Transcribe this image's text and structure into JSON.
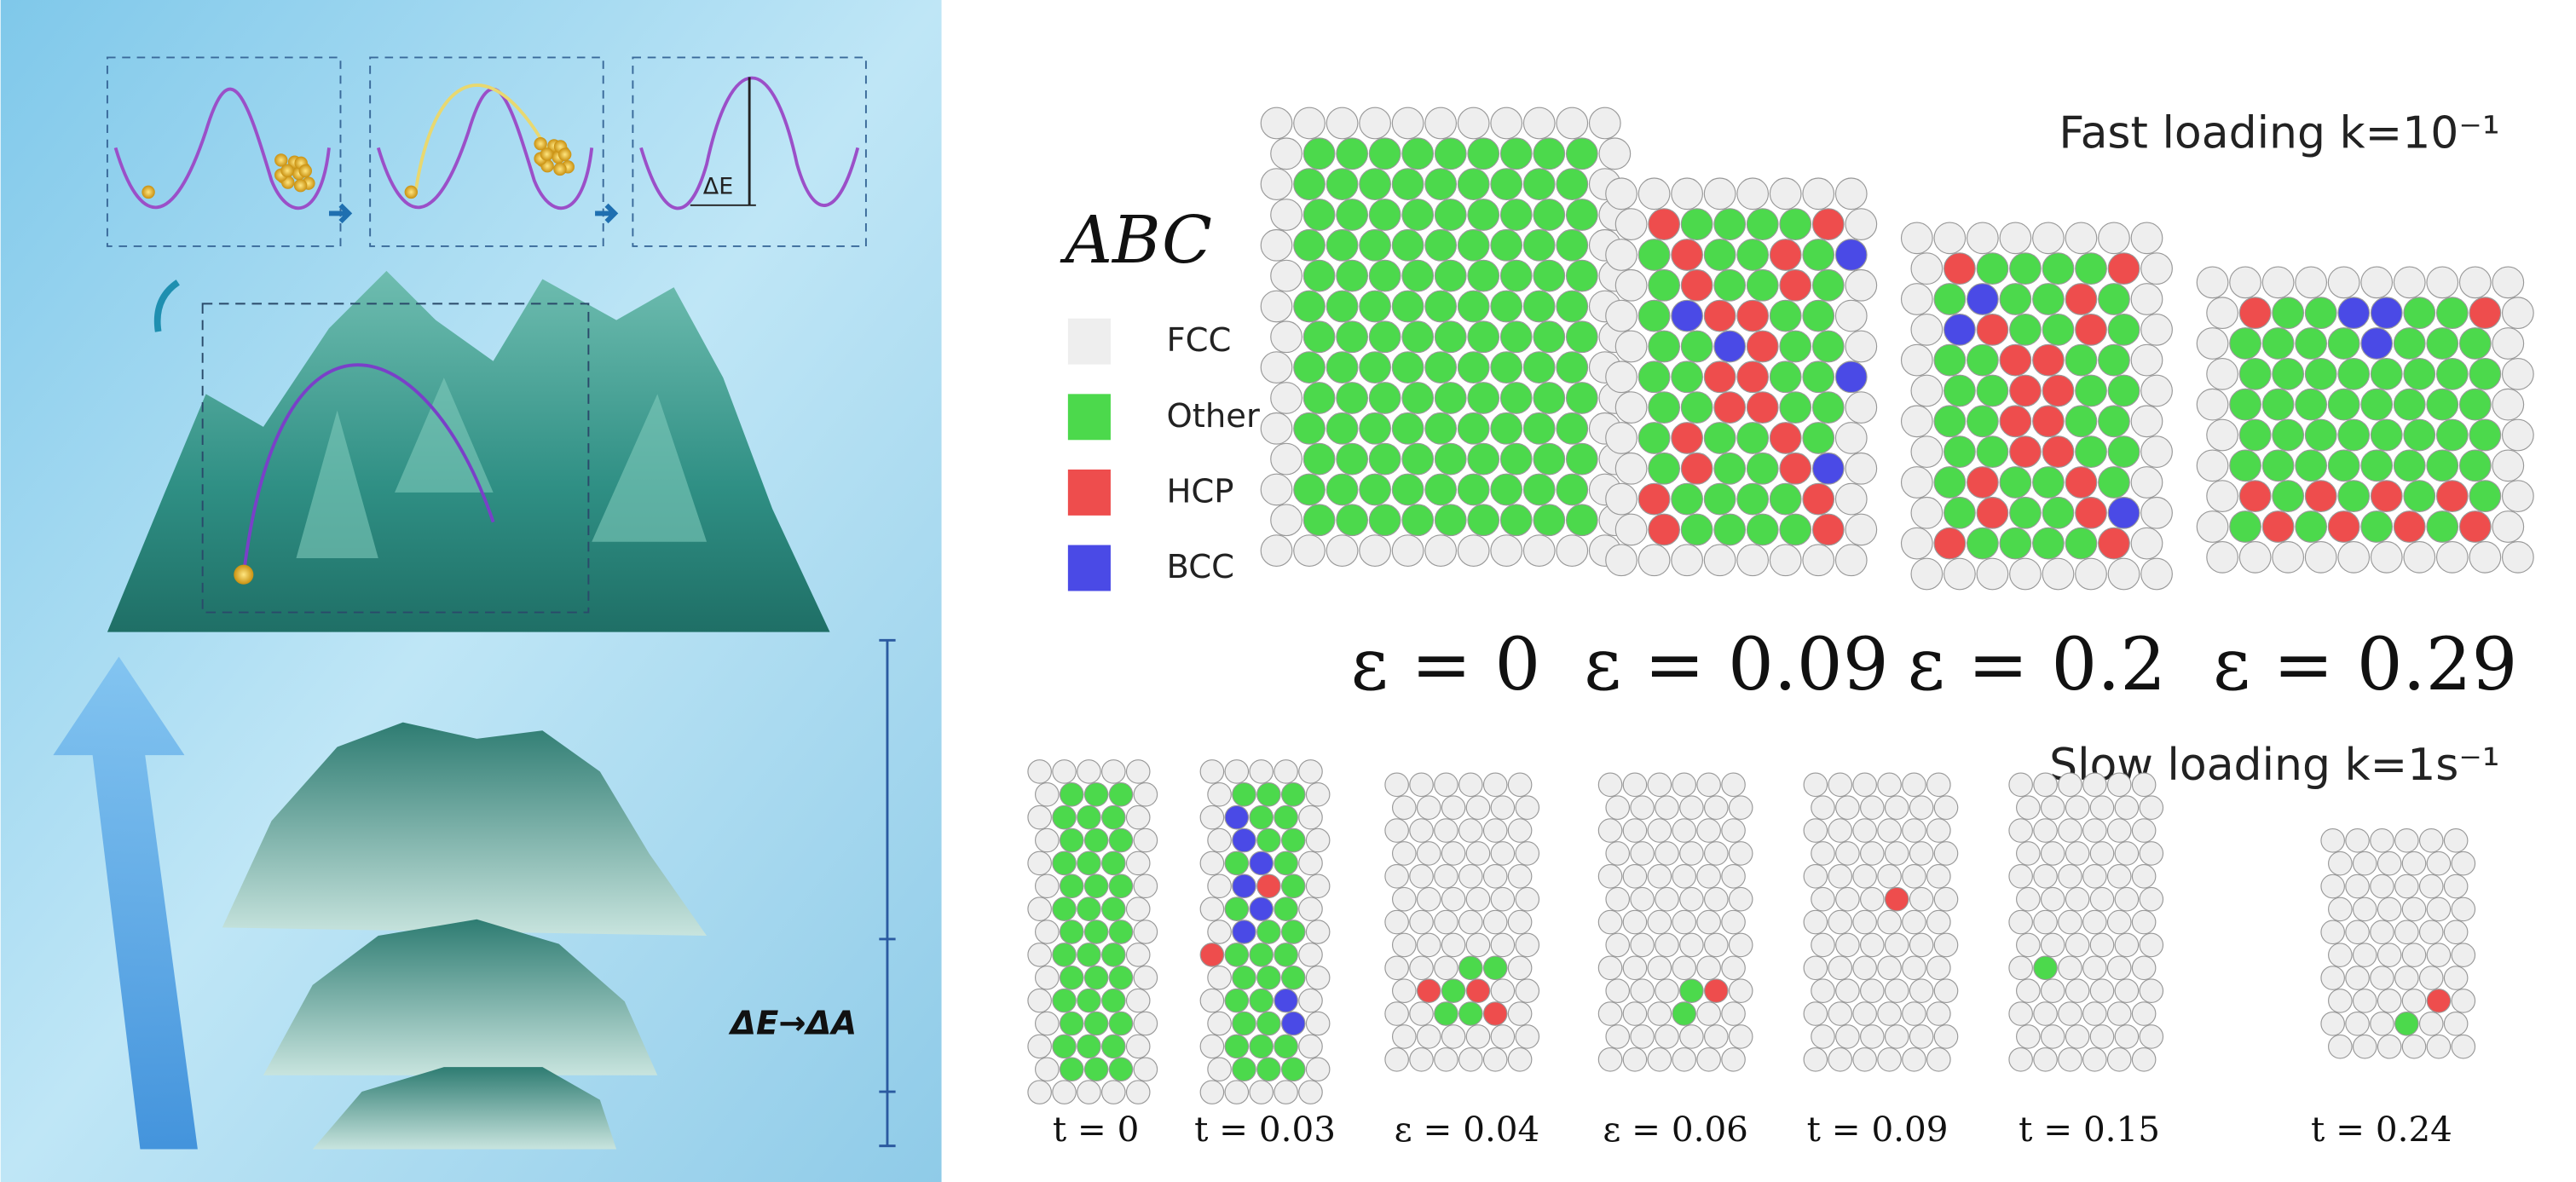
{
  "energy_panel": {
    "barrier_label": "ΔE",
    "transform_label": "ΔE→ΔA"
  },
  "legend": {
    "title": "ABC",
    "items": [
      {
        "label": "FCC",
        "color": "#eeeeee"
      },
      {
        "label": "Other",
        "color": "#4cd94c"
      },
      {
        "label": "HCP",
        "color": "#ee4d4d"
      },
      {
        "label": "BCC",
        "color": "#4a4ae6"
      }
    ]
  },
  "fast_loading": {
    "title": "Fast loading k=10⁻¹",
    "labels": [
      "ε = 0",
      "ε = 0.09",
      "ε = 0.2",
      "ε = 0.29"
    ]
  },
  "slow_loading": {
    "title": "Slow loading k=1s⁻¹",
    "labels": [
      "t = 0",
      "t = 0.03",
      "ε = 0.04",
      "ε = 0.06",
      "t = 0.09",
      "t = 0.15",
      "t = 0.24"
    ]
  }
}
